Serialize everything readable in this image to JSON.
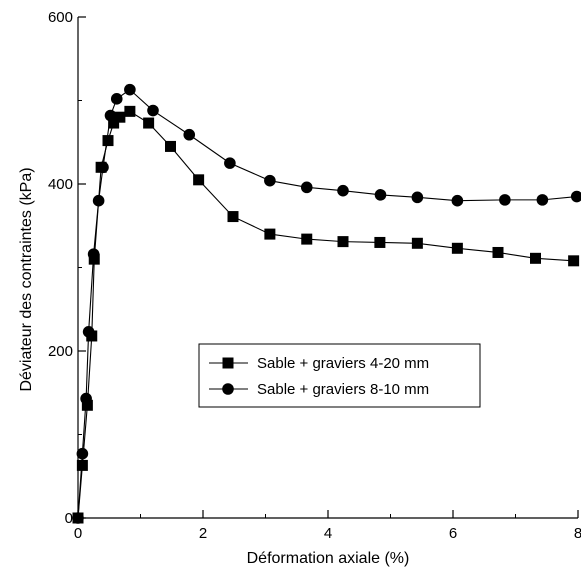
{
  "chart_data": {
    "type": "line",
    "title": "",
    "xlabel": "Déformation axiale (%)",
    "ylabel": "Déviateur des contraintes (kPa)",
    "xlim": [
      0,
      8
    ],
    "ylim": [
      0,
      600
    ],
    "x_ticks": [
      0,
      2,
      4,
      6,
      8
    ],
    "y_ticks": [
      0,
      200,
      400,
      600
    ],
    "grid": false,
    "legend_position": "center-right",
    "series": [
      {
        "name": "Sable + graviers 4-20 mm",
        "marker": "square",
        "color": "#000000",
        "x": [
          0,
          0.07,
          0.15,
          0.22,
          0.26,
          0.37,
          0.48,
          0.57,
          0.67,
          0.83,
          1.13,
          1.48,
          1.93,
          2.48,
          3.07,
          3.66,
          4.24,
          4.83,
          5.43,
          6.07,
          6.72,
          7.32,
          7.93
        ],
        "y": [
          0,
          63,
          135,
          218,
          310,
          420,
          452,
          473,
          480,
          487,
          473,
          445,
          405,
          361,
          340,
          334,
          331,
          330,
          329,
          323,
          318,
          311,
          308
        ]
      },
      {
        "name": "Sable + graviers 8-10 mm",
        "marker": "circle",
        "color": "#000000",
        "x": [
          0,
          0.07,
          0.13,
          0.17,
          0.25,
          0.33,
          0.4,
          0.52,
          0.62,
          0.83,
          1.2,
          1.78,
          2.43,
          3.07,
          3.66,
          4.24,
          4.84,
          5.43,
          6.07,
          6.83,
          7.43,
          7.98
        ],
        "y": [
          0,
          77,
          143,
          223,
          316,
          380,
          420,
          482,
          502,
          513,
          488,
          459,
          425,
          404,
          396,
          392,
          387,
          384,
          380,
          381,
          381,
          385
        ]
      }
    ]
  }
}
